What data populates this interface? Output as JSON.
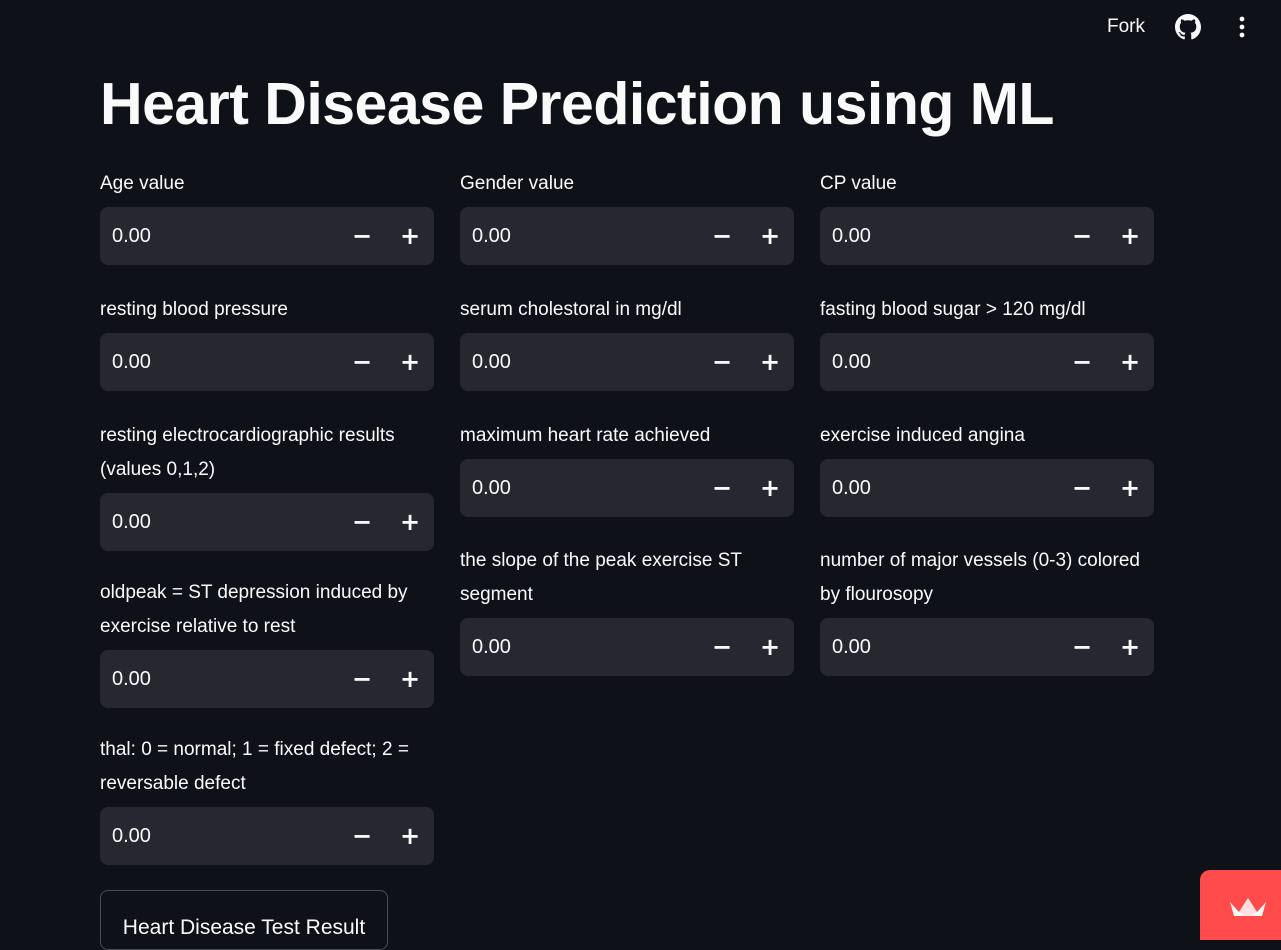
{
  "header": {
    "fork_label": "Fork",
    "github_icon": "github-icon",
    "menu_icon": "vertical-ellipsis-icon"
  },
  "title": "Heart Disease Prediction using ML",
  "fields": [
    {
      "label": "Age value",
      "value": "0.00"
    },
    {
      "label": "Gender value",
      "value": "0.00"
    },
    {
      "label": "CP value",
      "value": "0.00"
    },
    {
      "label": "resting blood pressure",
      "value": "0.00"
    },
    {
      "label": "serum cholestoral in mg/dl",
      "value": "0.00"
    },
    {
      "label": "fasting blood sugar > 120 mg/dl",
      "value": "0.00"
    },
    {
      "label": "resting electrocardiographic results (values 0,1,2)",
      "value": "0.00"
    },
    {
      "label": "maximum heart rate achieved",
      "value": "0.00"
    },
    {
      "label": "exercise induced angina",
      "value": "0.00"
    },
    {
      "label": "oldpeak = ST depression induced by exercise relative to rest",
      "value": "0.00"
    },
    {
      "label": "the slope of the peak exercise ST segment",
      "value": "0.00"
    },
    {
      "label": "number of major vessels (0-3) colored by flourosopy",
      "value": "0.00"
    },
    {
      "label": "thal: 0 = normal; 1 = fixed defect; 2 = reversable defect",
      "value": "0.00"
    }
  ],
  "stepper": {
    "minus_label": "−",
    "plus_label": "+"
  },
  "result_button_label": "Heart Disease Test Result",
  "badge_icon": "streamlit-crown-icon",
  "colors": {
    "background": "#0e1117",
    "input_background": "#262730",
    "text": "#fafafa",
    "accent": "#ff4b4b"
  }
}
